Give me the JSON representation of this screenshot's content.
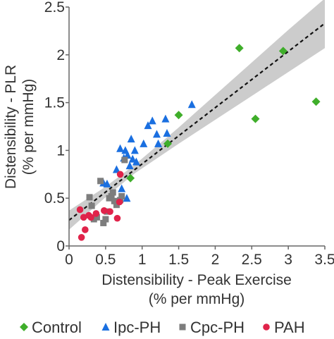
{
  "chart_data": {
    "type": "scatter",
    "title": "",
    "xlabel_lines": [
      "Distensibility - Peak Exercise",
      "(% per mmHg)"
    ],
    "ylabel_lines": [
      "Distensibility - PLR",
      "(% per mmHg)"
    ],
    "xlim": [
      0,
      3.5
    ],
    "ylim": [
      0,
      2.5
    ],
    "x_ticks": [
      0,
      0.5,
      1,
      1.5,
      2,
      2.5,
      3,
      3.5
    ],
    "x_tick_labels": [
      "0",
      "0.5",
      "1",
      "1.5",
      "2",
      "2.5",
      "3",
      "3.5"
    ],
    "y_ticks": [
      0,
      0.5,
      1,
      1.5,
      2,
      2.5
    ],
    "y_tick_labels": [
      "0",
      "0.5",
      "1",
      "1.5",
      "2",
      "2.5"
    ],
    "grid": false,
    "legend_position": "bottom",
    "fit_line": {
      "style": "dashed",
      "color": "#111111",
      "x": [
        0,
        3.5
      ],
      "y": [
        0.27,
        2.33
      ]
    },
    "confidence_band": {
      "color": "#cccccc",
      "x": [
        0,
        0.5,
        0.9,
        1.5,
        2.0,
        2.5,
        3.0,
        3.5
      ],
      "lower": [
        0.17,
        0.51,
        0.76,
        1.07,
        1.32,
        1.57,
        1.82,
        2.07
      ],
      "upper": [
        0.37,
        0.62,
        0.85,
        1.24,
        1.58,
        1.92,
        2.26,
        2.59
      ]
    },
    "series": [
      {
        "name": "Control",
        "marker": "diamond",
        "color": "#3fae2a",
        "points": [
          [
            0.84,
            0.71
          ],
          [
            1.35,
            1.07
          ],
          [
            1.5,
            1.37
          ],
          [
            2.33,
            2.07
          ],
          [
            2.55,
            1.33
          ],
          [
            2.93,
            2.04
          ],
          [
            3.38,
            1.51
          ]
        ]
      },
      {
        "name": "Ipc-PH",
        "marker": "triangle",
        "color": "#1a6fe0",
        "points": [
          [
            0.47,
            0.66
          ],
          [
            0.52,
            0.65
          ],
          [
            0.65,
            0.8
          ],
          [
            0.7,
            1.02
          ],
          [
            0.72,
            0.6
          ],
          [
            0.75,
            0.92
          ],
          [
            0.77,
            1.0
          ],
          [
            0.79,
            0.5
          ],
          [
            0.8,
            0.95
          ],
          [
            0.83,
            0.84
          ],
          [
            0.85,
            1.12
          ],
          [
            0.87,
            0.91
          ],
          [
            0.9,
            1.0
          ],
          [
            0.92,
            0.88
          ],
          [
            1.02,
            1.07
          ],
          [
            1.08,
            1.26
          ],
          [
            1.14,
            1.31
          ],
          [
            1.2,
            1.17
          ],
          [
            1.22,
            1.07
          ],
          [
            1.32,
            1.33
          ],
          [
            1.34,
            1.18
          ],
          [
            1.68,
            1.48
          ]
        ]
      },
      {
        "name": "Cpc-PH",
        "marker": "square",
        "color": "#7d7d7d",
        "points": [
          [
            0.28,
            0.51
          ],
          [
            0.31,
            0.42
          ],
          [
            0.34,
            0.28
          ],
          [
            0.38,
            0.3
          ],
          [
            0.43,
            0.68
          ],
          [
            0.47,
            0.24
          ],
          [
            0.5,
            0.28
          ],
          [
            0.52,
            0.36
          ],
          [
            0.55,
            0.5
          ],
          [
            0.58,
            0.52
          ],
          [
            0.6,
            0.56
          ],
          [
            0.62,
            0.47
          ],
          [
            0.65,
            0.43
          ],
          [
            0.7,
            0.48
          ],
          [
            0.72,
            0.52
          ],
          [
            0.76,
            0.9
          ]
        ]
      },
      {
        "name": "PAH",
        "marker": "circle",
        "color": "#e0234a",
        "points": [
          [
            0.15,
            0.38
          ],
          [
            0.17,
            0.09
          ],
          [
            0.2,
            0.3
          ],
          [
            0.22,
            0.17
          ],
          [
            0.27,
            0.32
          ],
          [
            0.3,
            0.3
          ],
          [
            0.37,
            0.34
          ],
          [
            0.48,
            0.37
          ],
          [
            0.56,
            0.36
          ],
          [
            0.66,
            0.29
          ],
          [
            0.69,
            0.46
          ],
          [
            0.7,
            0.75
          ]
        ]
      }
    ]
  }
}
